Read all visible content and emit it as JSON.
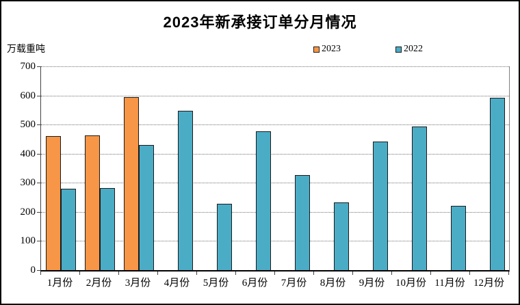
{
  "window": {
    "background": "#ffffff",
    "border_color": "#000000"
  },
  "chart_data": {
    "type": "bar",
    "title": "2023年新承接订单分月情况",
    "ylabel": "万载重吨",
    "xlabel": "",
    "categories": [
      "1月份",
      "2月份",
      "3月份",
      "4月份",
      "5月份",
      "6月份",
      "7月份",
      "8月份",
      "9月份",
      "10月份",
      "11月份",
      "12月份"
    ],
    "series": [
      {
        "name": "2023",
        "color": "#F79646",
        "values": [
          460,
          463,
          595,
          null,
          null,
          null,
          null,
          null,
          null,
          null,
          null,
          null
        ]
      },
      {
        "name": "2022",
        "color": "#4BACC6",
        "values": [
          280,
          282,
          429,
          548,
          229,
          477,
          327,
          232,
          441,
          493,
          220,
          592
        ]
      }
    ],
    "ylim": [
      0,
      700
    ],
    "ytick_step": 100,
    "grid": "horizontal-dotted",
    "legend_position": "top-right",
    "bar_outline_color": "#1a1a1a"
  }
}
